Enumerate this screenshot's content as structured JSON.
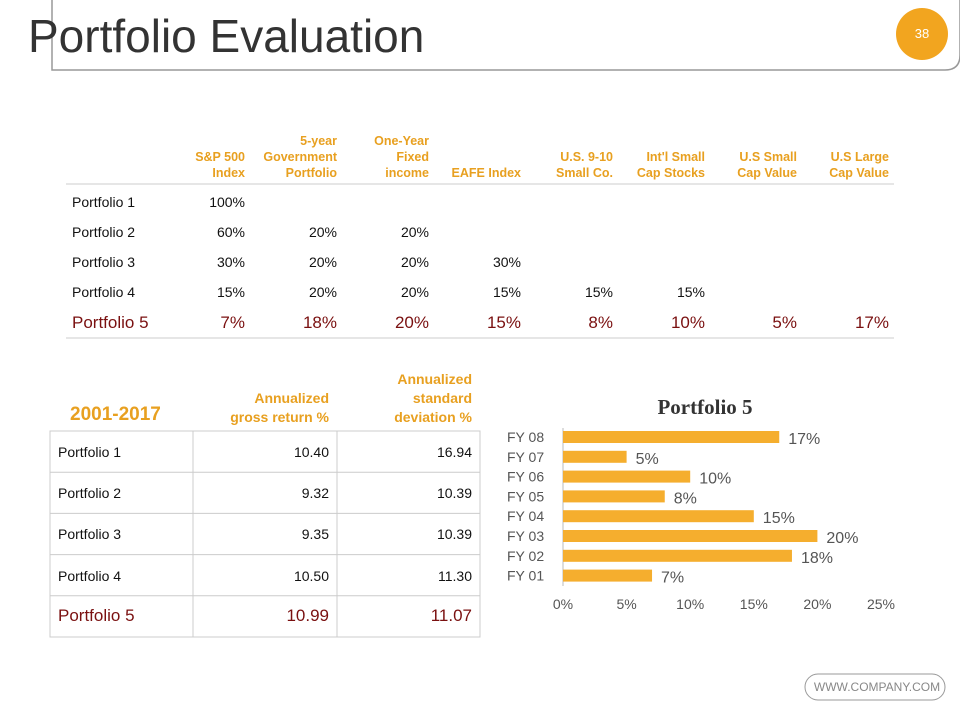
{
  "header": {
    "title": "Portfolio Evaluation",
    "page_number": "38"
  },
  "table1": {
    "columns": [
      "S&P 500\nIndex",
      "5-year\nGovernment\nPortfolio",
      "One-Year\nFixed\nincome",
      "EAFE Index",
      "U.S. 9-10\nSmall Co.",
      "Int'l Small\nCap Stocks",
      "U.S Small\nCap Value",
      "U.S Large\nCap Value"
    ],
    "rows": [
      [
        "Portfolio 1",
        "100%"
      ],
      [
        "Portfolio 2",
        "60%",
        "20%",
        "20%"
      ],
      [
        "Portfolio 3",
        "30%",
        "20%",
        "20%",
        "30%"
      ],
      [
        "Portfolio 4",
        "15%",
        "20%",
        "20%",
        "15%",
        "15%",
        "15%"
      ],
      [
        "Portfolio 5",
        "7%",
        "18%",
        "20%",
        "15%",
        "8%",
        "10%",
        "5%",
        "17%"
      ]
    ]
  },
  "table2": {
    "period": "2001-2017",
    "columns": [
      "Annualized\ngross return %",
      "Annualized\nstandard\ndeviation %"
    ],
    "rows": [
      [
        "Portfolio 1",
        "10.40",
        "16.94"
      ],
      [
        "Portfolio 2",
        "9.32",
        "10.39"
      ],
      [
        "Portfolio 3",
        "9.35",
        "10.39"
      ],
      [
        "Portfolio 4",
        "10.50",
        "11.30"
      ],
      [
        "Portfolio 5",
        "10.99",
        "11.07"
      ]
    ]
  },
  "chart_data": {
    "type": "bar",
    "orientation": "horizontal",
    "title": "Portfolio 5",
    "color": "#F5AE2E",
    "categories": [
      "FY 08",
      "FY 07",
      "FY 06",
      "FY 05",
      "FY 04",
      "FY 03",
      "FY 02",
      "FY 01"
    ],
    "values": [
      17,
      5,
      10,
      8,
      15,
      20,
      18,
      7
    ],
    "value_labels": [
      "17%",
      "5%",
      "10%",
      "8%",
      "15%",
      "20%",
      "18%",
      "7%"
    ],
    "xlim": [
      0,
      25
    ],
    "xticks": [
      {
        "value": 0,
        "label": "0%"
      },
      {
        "value": 5,
        "label": "5%"
      },
      {
        "value": 10,
        "label": "10%"
      },
      {
        "value": 15,
        "label": "15%"
      },
      {
        "value": 20,
        "label": "20%"
      },
      {
        "value": 25,
        "label": "25%"
      }
    ]
  },
  "footer": {
    "url": "WWW.COMPANY.COM"
  }
}
